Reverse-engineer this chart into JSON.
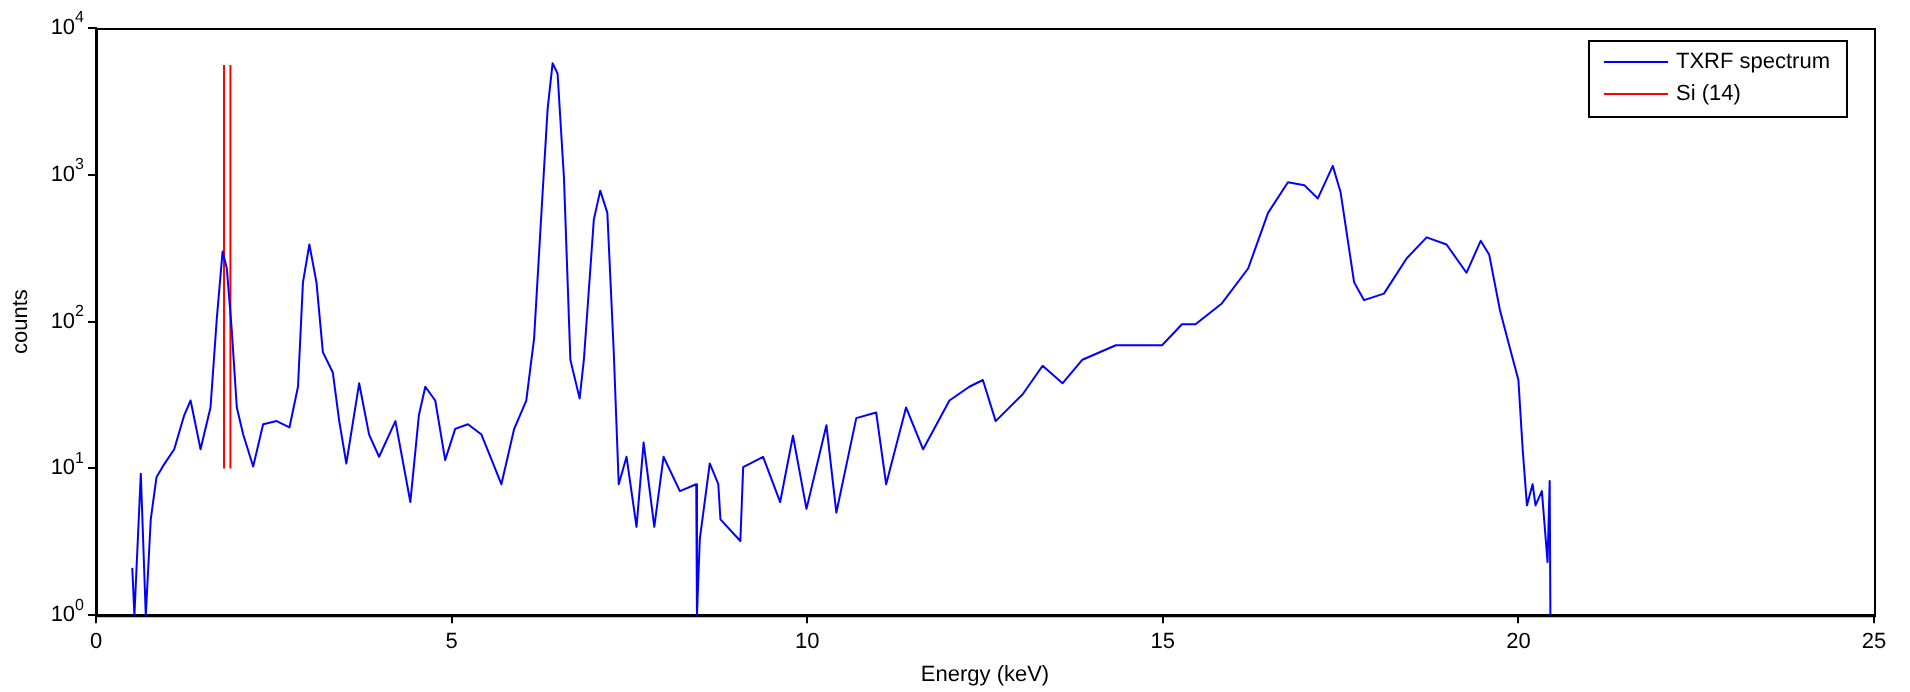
{
  "chart_data": {
    "type": "line",
    "xlabel": "Energy (keV)",
    "ylabel": "counts",
    "log": "y",
    "xlim": [
      0,
      25
    ],
    "xticks": [
      0,
      5,
      10,
      15,
      20,
      25
    ],
    "ylim": [
      1,
      10000
    ],
    "yticks": [
      {
        "value": 1,
        "label": "10$^{0}$"
      },
      {
        "value": 10,
        "label": "10$^{1}$"
      },
      {
        "value": 100,
        "label": "10$^{2}$"
      },
      {
        "value": 1000,
        "label": "10$^{3}$"
      },
      {
        "value": 10000,
        "label": "10$^{4}$"
      }
    ],
    "grid": false,
    "legend": "top right",
    "marker": "none",
    "series": [
      {
        "name": "TXRF spectrum",
        "color": "#0000ff",
        "x": [
          0.51,
          0.54,
          0.63,
          0.7,
          0.77,
          0.85,
          0.96,
          1.1,
          1.24,
          1.33,
          1.47,
          1.61,
          1.7,
          1.78,
          1.84,
          1.91,
          1.98,
          2.07,
          2.21,
          2.35,
          2.54,
          2.72,
          2.84,
          2.91,
          3.0,
          3.1,
          3.19,
          3.33,
          3.42,
          3.52,
          3.7,
          3.84,
          3.98,
          4.21,
          4.42,
          4.54,
          4.63,
          4.77,
          4.91,
          5.05,
          5.23,
          5.42,
          5.7,
          5.88,
          6.05,
          6.16,
          6.28,
          6.35,
          6.42,
          6.49,
          6.58,
          6.67,
          6.8,
          6.86,
          7.0,
          7.09,
          7.19,
          7.28,
          7.35,
          7.46,
          7.6,
          7.7,
          7.85,
          7.98,
          8.21,
          8.44,
          8.45,
          8.49,
          8.63,
          8.75,
          8.78,
          9.06,
          9.1,
          9.38,
          9.62,
          9.8,
          9.99,
          10.27,
          10.41,
          10.69,
          10.97,
          11.11,
          11.39,
          11.63,
          12.0,
          12.28,
          12.47,
          12.65,
          13.03,
          13.31,
          13.59,
          13.87,
          14.34,
          14.71,
          14.99,
          15.27,
          15.46,
          15.83,
          16.2,
          16.48,
          16.76,
          16.99,
          17.18,
          17.39,
          17.5,
          17.69,
          17.83,
          18.11,
          18.43,
          18.71,
          18.99,
          19.27,
          19.47,
          19.59,
          19.74,
          19.87,
          20.0,
          20.06,
          20.12,
          20.2,
          20.24,
          20.33,
          20.41,
          20.44,
          20.45
        ],
        "values": [
          2.1,
          1,
          9.2,
          1,
          4.5,
          8.7,
          10.7,
          13.5,
          23,
          29,
          13.5,
          26,
          107,
          300,
          230,
          86,
          26,
          17,
          10.3,
          20,
          21,
          19,
          36,
          185,
          335,
          185,
          62,
          45,
          21,
          10.8,
          38,
          17,
          12,
          21,
          5.9,
          23,
          36,
          29,
          11.4,
          18.6,
          20,
          17,
          7.8,
          18.6,
          29,
          77,
          760,
          2800,
          5750,
          4900,
          950,
          55,
          30,
          55,
          495,
          780,
          550,
          62,
          7.8,
          12,
          4,
          15,
          4,
          12,
          7,
          7.8,
          1,
          3.3,
          10.8,
          7.8,
          4.5,
          3.2,
          10.2,
          12,
          5.9,
          16.7,
          5.3,
          19.7,
          5,
          22,
          24,
          7.8,
          26,
          13.5,
          29,
          36,
          40,
          21,
          32,
          50,
          38,
          55,
          69,
          69,
          69,
          96,
          96,
          133,
          230,
          550,
          890,
          850,
          690,
          1150,
          760,
          185,
          140,
          155,
          270,
          375,
          335,
          215,
          355,
          285,
          120,
          69,
          40,
          13.5,
          5.6,
          7.8,
          5.6,
          7,
          2.3,
          8.2,
          1
        ]
      },
      {
        "name": "Si (14)",
        "color": "#ff0000",
        "x": [
          1.8,
          1.8
        ],
        "values": [
          10,
          5600
        ]
      },
      {
        "color": "#ff0000",
        "x": [
          1.89,
          1.89
        ],
        "values": [
          10,
          5600
        ]
      }
    ]
  }
}
